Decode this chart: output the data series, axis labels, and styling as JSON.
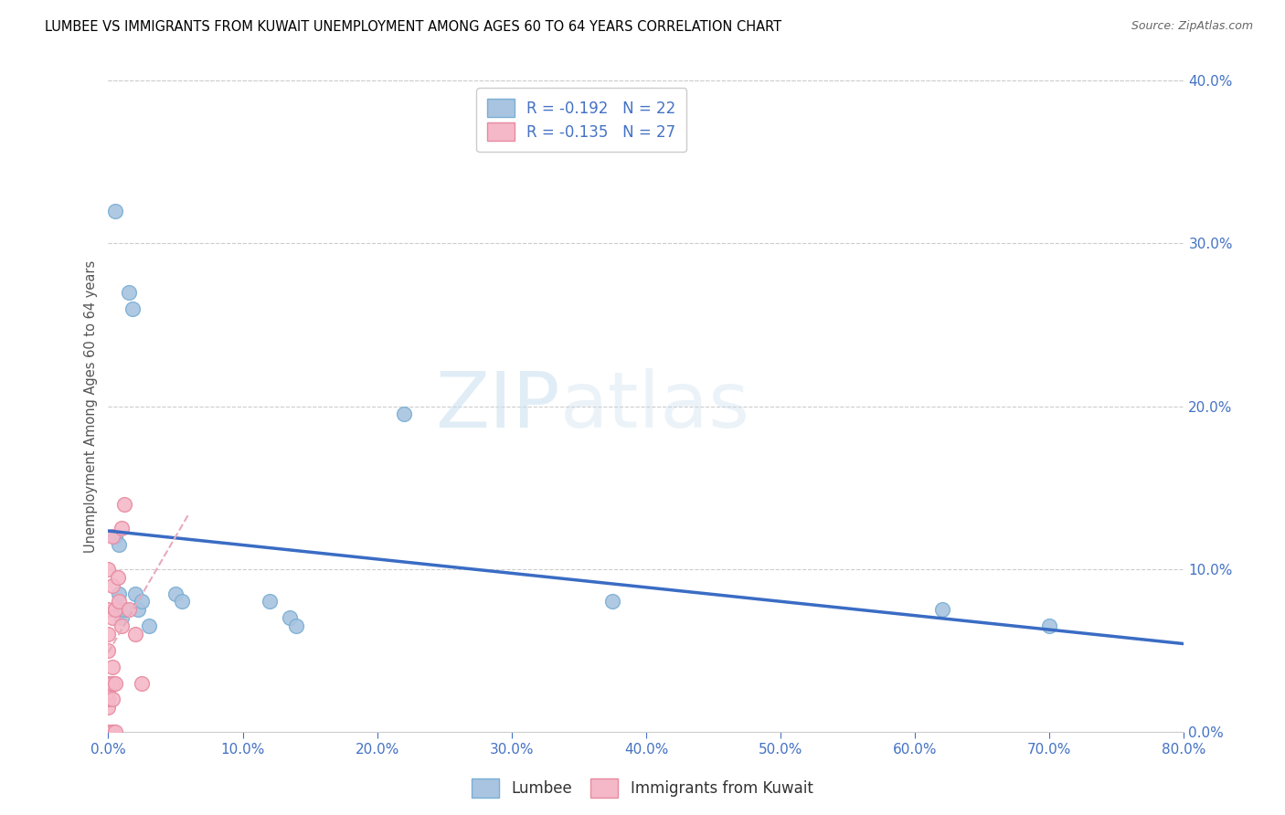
{
  "title": "LUMBEE VS IMMIGRANTS FROM KUWAIT UNEMPLOYMENT AMONG AGES 60 TO 64 YEARS CORRELATION CHART",
  "source": "Source: ZipAtlas.com",
  "ylabel": "Unemployment Among Ages 60 to 64 years",
  "xlim": [
    0.0,
    0.8
  ],
  "ylim": [
    0.0,
    0.4
  ],
  "xticks": [
    0.0,
    0.1,
    0.2,
    0.3,
    0.4,
    0.5,
    0.6,
    0.7,
    0.8
  ],
  "yticks": [
    0.0,
    0.1,
    0.2,
    0.3,
    0.4
  ],
  "lumbee_color": "#a8c4e0",
  "kuwait_color": "#f4b8c8",
  "lumbee_edge": "#7aafd4",
  "kuwait_edge": "#e88aa0",
  "trend_lumbee_color": "#3a6cc4",
  "trend_kuwait_color": "#e8aabb",
  "legend_r_lumbee": "-0.192",
  "legend_n_lumbee": "22",
  "legend_r_kuwait": "-0.135",
  "legend_n_kuwait": "27",
  "lumbee_x": [
    0.005,
    0.005,
    0.008,
    0.008,
    0.01,
    0.01,
    0.012,
    0.015,
    0.018,
    0.02,
    0.022,
    0.025,
    0.03,
    0.05,
    0.055,
    0.12,
    0.135,
    0.14,
    0.22,
    0.375,
    0.62,
    0.7
  ],
  "lumbee_y": [
    0.32,
    0.12,
    0.115,
    0.085,
    0.075,
    0.07,
    0.075,
    0.27,
    0.26,
    0.085,
    0.075,
    0.08,
    0.065,
    0.085,
    0.08,
    0.08,
    0.07,
    0.065,
    0.195,
    0.08,
    0.075,
    0.065
  ],
  "kuwait_x": [
    0.0,
    0.0,
    0.0,
    0.0,
    0.0,
    0.0,
    0.0,
    0.0,
    0.0,
    0.003,
    0.003,
    0.003,
    0.003,
    0.003,
    0.003,
    0.003,
    0.005,
    0.005,
    0.005,
    0.007,
    0.008,
    0.01,
    0.01,
    0.012,
    0.015,
    0.02,
    0.025
  ],
  "kuwait_y": [
    0.0,
    0.015,
    0.02,
    0.025,
    0.03,
    0.05,
    0.06,
    0.075,
    0.1,
    0.0,
    0.02,
    0.03,
    0.04,
    0.07,
    0.09,
    0.12,
    0.0,
    0.03,
    0.075,
    0.095,
    0.08,
    0.065,
    0.125,
    0.14,
    0.075,
    0.06,
    0.03
  ],
  "marker_size": 130,
  "lw_scatter": 1.0,
  "trend_lw": 2.5,
  "trend_kuwait_lw": 1.5
}
